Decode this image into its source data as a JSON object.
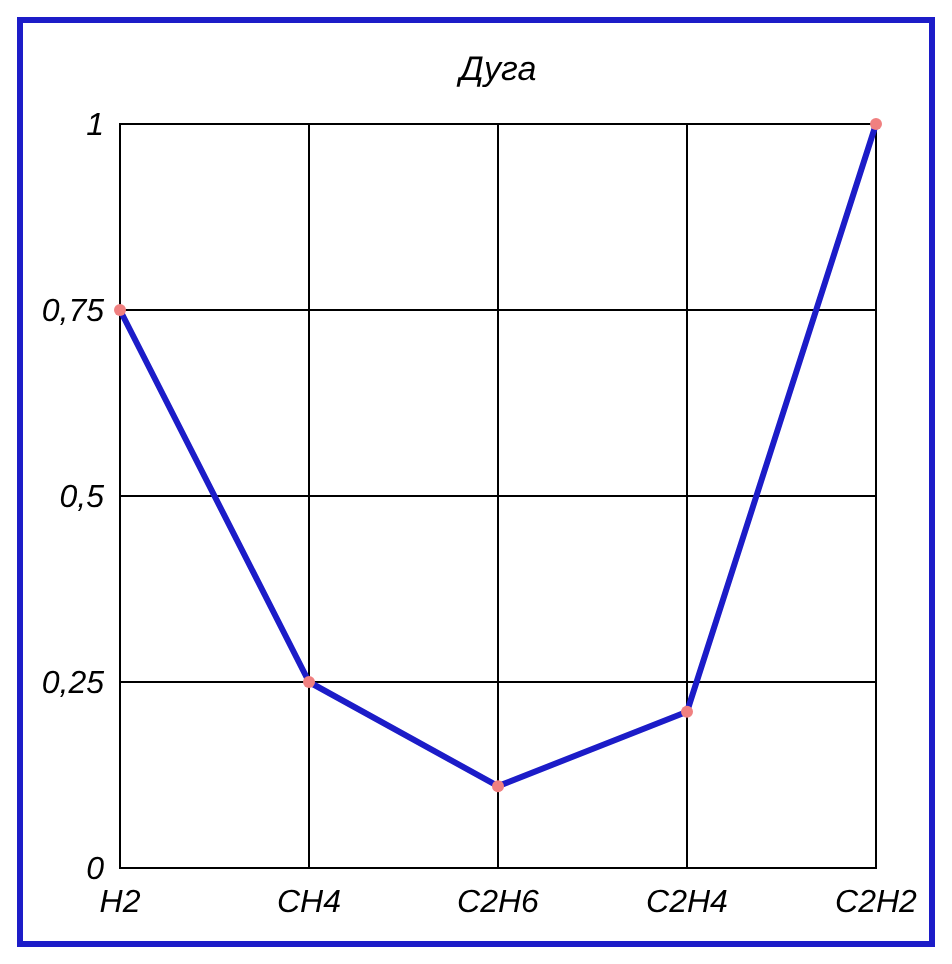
{
  "chart_data": {
    "type": "line",
    "title": "Дуга",
    "categories": [
      "H2",
      "CH4",
      "C2H6",
      "C2H4",
      "C2H2"
    ],
    "series": [
      {
        "color": "#1c1cc8",
        "values": [
          0.75,
          0.25,
          0.11,
          0.21,
          1
        ]
      }
    ],
    "ylim": [
      0,
      1
    ],
    "yticks": [
      0,
      {
        "value": 0.25,
        "label": "0,25"
      },
      {
        "value": 0.5,
        "label": "0,5"
      },
      {
        "value": 0.75,
        "label": "0,75"
      },
      1
    ],
    "grid": true,
    "marker": "circle",
    "line_style": "solid"
  }
}
